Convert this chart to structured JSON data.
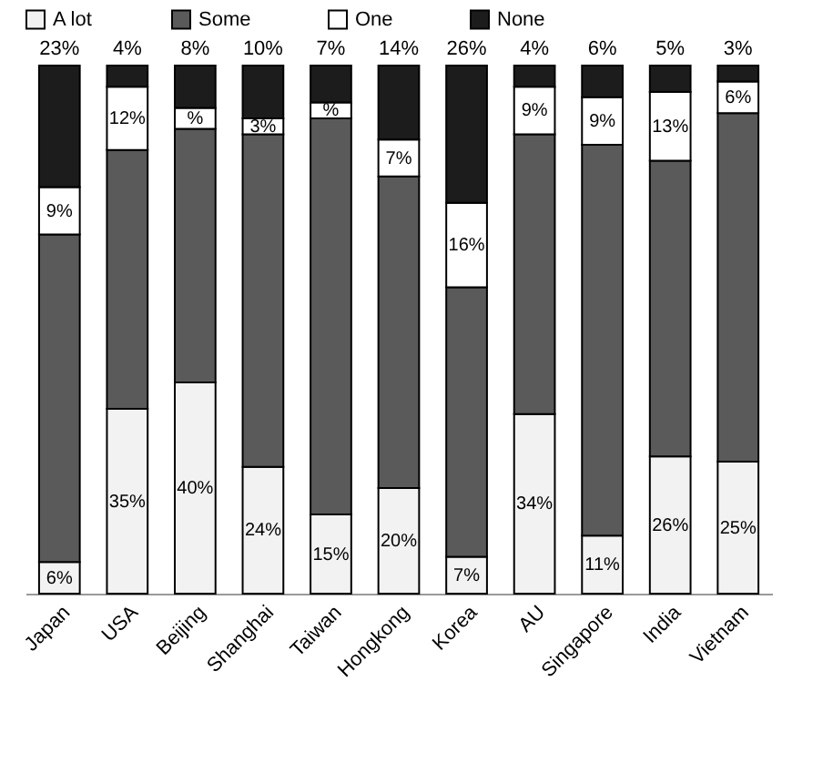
{
  "chart_data": {
    "type": "bar",
    "stacked": true,
    "legend": "top",
    "categories": [
      "Japan",
      "USA",
      "Beijing",
      "Shanghai",
      "Taiwan",
      "Hongkong",
      "Korea",
      "AU",
      "Singapore",
      "India",
      "Vietnam"
    ],
    "series": [
      {
        "name": "A lot",
        "color": "#f2f2f2",
        "values": [
          6,
          35,
          40,
          24,
          15,
          20,
          7,
          34,
          11,
          26,
          25
        ],
        "value_labels": [
          "6%",
          "35%",
          "40%",
          "24%",
          "15%",
          "20%",
          "7%",
          "34%",
          "11%",
          "26%",
          "25%"
        ]
      },
      {
        "name": "Some",
        "color": "#5a5a5a",
        "values": [
          62,
          49,
          48,
          63,
          75,
          59,
          51,
          53,
          74,
          56,
          66
        ]
      },
      {
        "name": "One",
        "color": "#ffffff",
        "values": [
          9,
          12,
          4,
          3,
          3,
          7,
          16,
          9,
          9,
          13,
          6
        ],
        "value_labels": [
          "9%",
          "12%",
          "%",
          "3%",
          "%",
          "7%",
          "16%",
          "9%",
          "9%",
          "13%",
          "6%"
        ]
      },
      {
        "name": "None",
        "color": "#1c1c1c",
        "values": [
          23,
          4,
          8,
          10,
          7,
          14,
          26,
          4,
          6,
          5,
          3
        ],
        "value_labels": [
          "23%",
          "4%",
          "8%",
          "10%",
          "7%",
          "14%",
          "26%",
          "4%",
          "6%",
          "5%",
          "3%"
        ]
      }
    ]
  }
}
